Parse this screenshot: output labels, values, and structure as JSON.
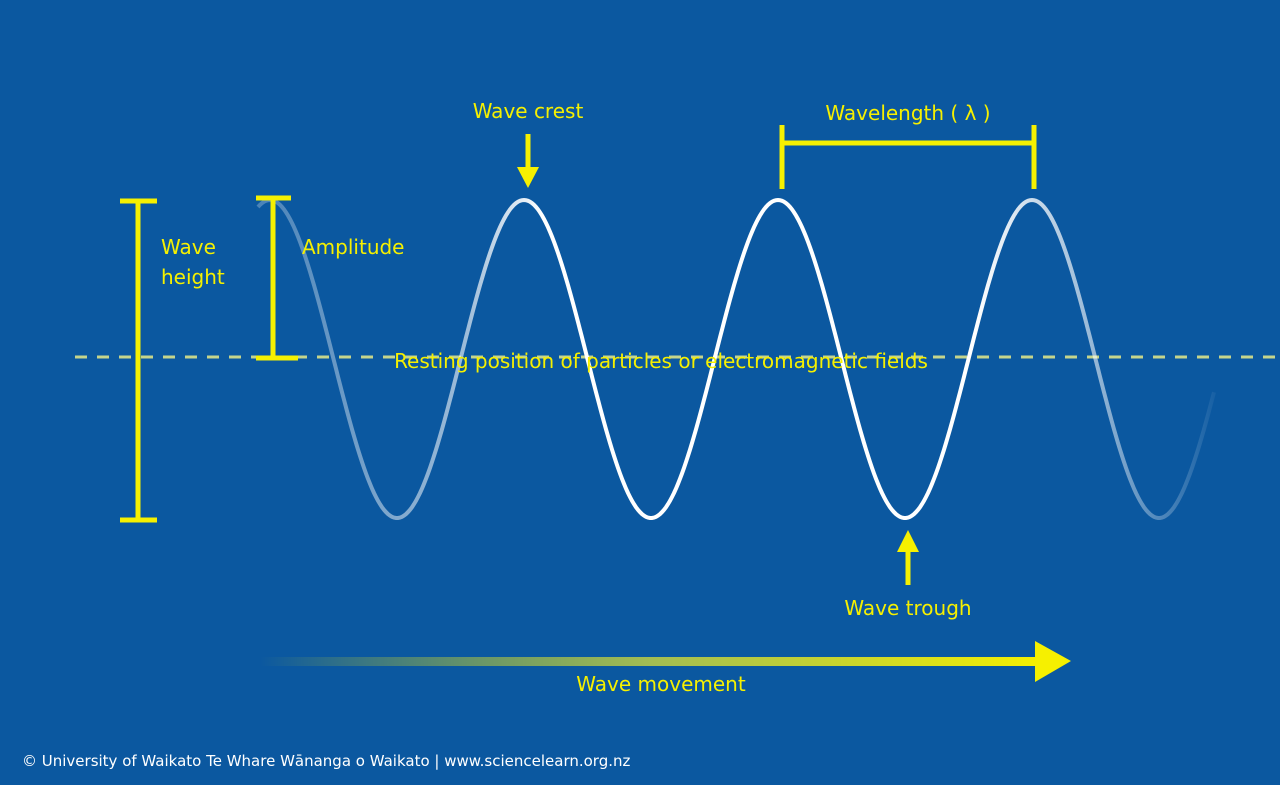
{
  "labels": {
    "wave_crest": "Wave crest",
    "wavelength": "Wavelength ( λ )",
    "wave_height": [
      "Wave",
      "height"
    ],
    "amplitude": "Amplitude",
    "resting_position": "Resting position of particles or electromagnetic fields",
    "wave_trough": "Wave trough",
    "wave_movement": "Wave movement"
  },
  "footer": {
    "copyright": "© University of Waikato Te Whare Wānanga o Waikato | www.sciencelearn.org.nz"
  }
}
